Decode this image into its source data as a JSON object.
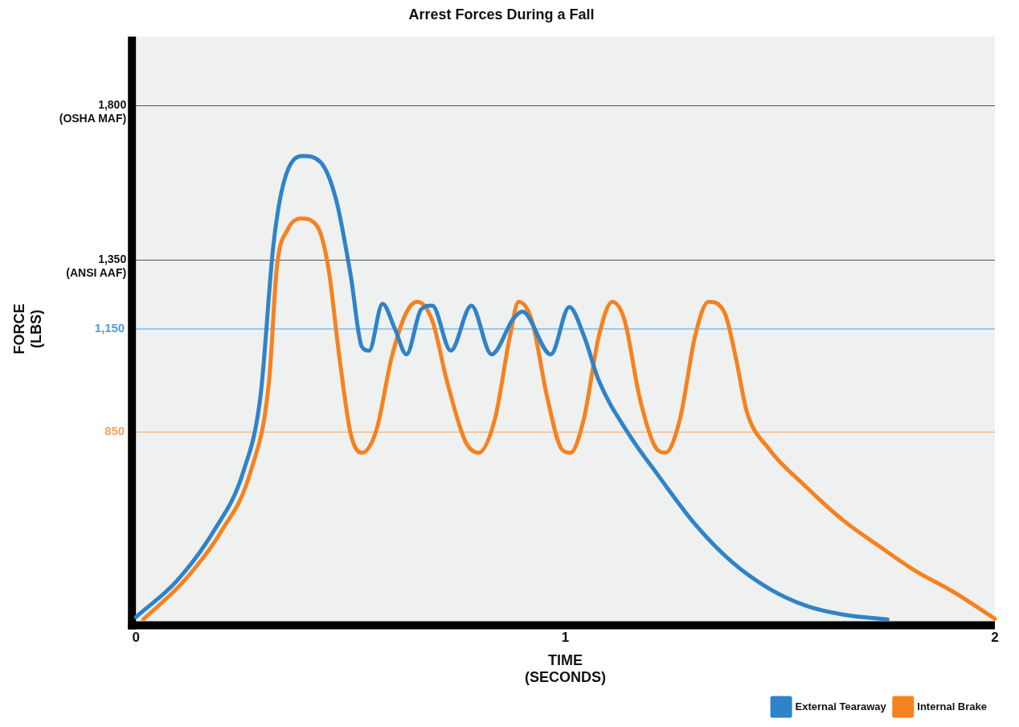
{
  "chart_data": {
    "type": "line",
    "title": "Arrest Forces During a Fall",
    "xlabel": "TIME\n(SECONDS)",
    "ylabel": "FORCE\n(LBS)",
    "xlim": [
      0,
      2
    ],
    "xticks": [
      0,
      1,
      2
    ],
    "ylim": [
      300,
      2000
    ],
    "yticks": [
      {
        "value": 1350,
        "label": "1,350\n(ANSI AAF)"
      },
      {
        "value": 1800,
        "label": "1,800\n(OSHA MAF)"
      }
    ],
    "grid": "y",
    "legend": "bottom right",
    "ref_lines": [
      {
        "axis": "y",
        "value": 1150,
        "label": "1,150",
        "color": "#4a9fe0"
      },
      {
        "axis": "y",
        "value": 850,
        "label": "850",
        "color": "#f7a35c"
      }
    ],
    "series": [
      {
        "name": "External Tearaway",
        "color": "#2f83c8",
        "x": [
          0,
          0.095,
          0.18,
          0.25,
          0.29,
          0.32,
          0.345,
          0.388,
          0.43,
          0.466,
          0.5,
          0.526,
          0.543,
          0.574,
          0.603,
          0.63,
          0.664,
          0.69,
          0.733,
          0.781,
          0.828,
          0.879,
          0.9,
          0.966,
          1.009,
          1.043,
          1.078,
          1.147,
          1.216,
          1.302,
          1.388,
          1.474,
          1.56,
          1.647,
          1.75
        ],
        "values": [
          312,
          417,
          560,
          735,
          955,
          1394,
          1580,
          1653,
          1635,
          1526,
          1306,
          1098,
          1087,
          1223,
          1150,
          1076,
          1207,
          1218,
          1087,
          1218,
          1076,
          1180,
          1200,
          1076,
          1214,
          1130,
          999,
          845,
          724,
          582,
          472,
          395,
          345,
          319,
          305
        ]
      },
      {
        "name": "Internal Brake",
        "color": "#f58220",
        "x": [
          0.017,
          0.112,
          0.198,
          0.267,
          0.31,
          0.328,
          0.353,
          0.384,
          0.422,
          0.448,
          0.474,
          0.5,
          0.526,
          0.56,
          0.595,
          0.629,
          0.655,
          0.69,
          0.724,
          0.767,
          0.798,
          0.836,
          0.871,
          0.891,
          0.922,
          0.957,
          0.991,
          1.012,
          1.043,
          1.078,
          1.109,
          1.138,
          1.172,
          1.207,
          1.233,
          1.267,
          1.302,
          1.333,
          1.371,
          1.397,
          1.422,
          1.474,
          1.56,
          1.647,
          1.733,
          1.81,
          1.905,
          2.0
        ],
        "values": [
          305,
          417,
          560,
          735,
          999,
          1328,
          1438,
          1471,
          1449,
          1328,
          1065,
          845,
          790,
          856,
          1065,
          1196,
          1229,
          1174,
          999,
          823,
          790,
          889,
          1130,
          1229,
          1174,
          955,
          801,
          790,
          889,
          1130,
          1229,
          1174,
          955,
          812,
          790,
          889,
          1130,
          1229,
          1196,
          1065,
          911,
          801,
          691,
          593,
          516,
          450,
          384,
          307
        ]
      }
    ]
  }
}
